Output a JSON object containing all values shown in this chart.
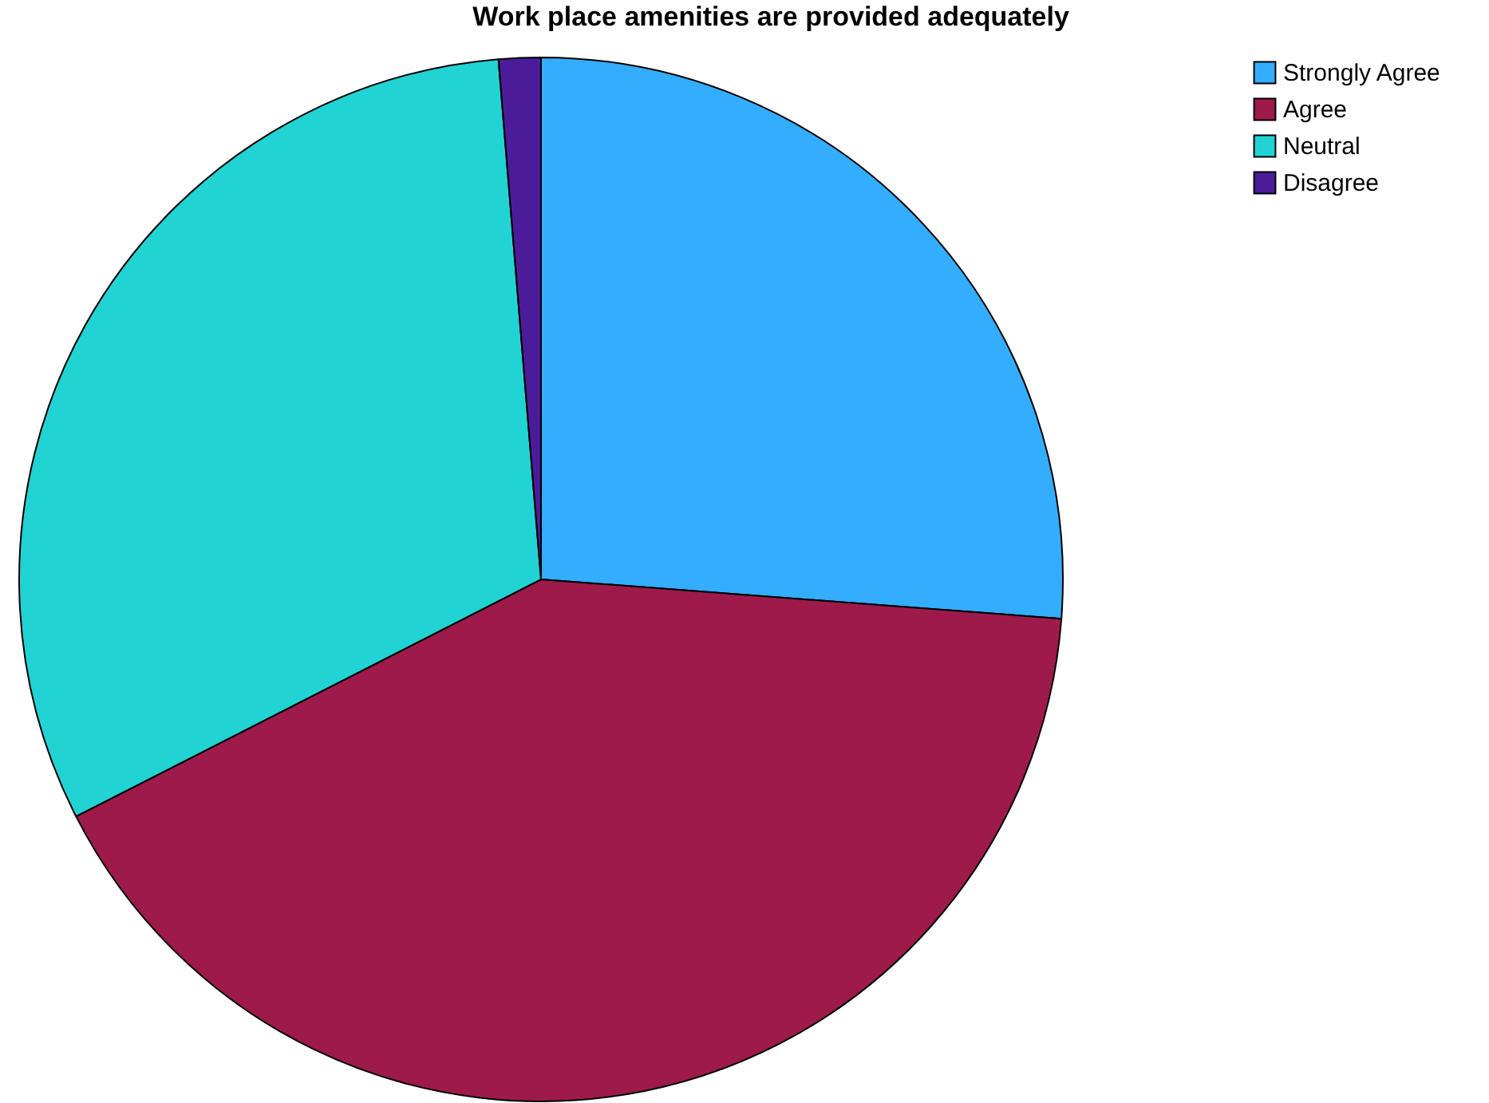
{
  "chart_data": {
    "type": "pie",
    "title": "Work place amenities are provided adequately",
    "categories": [
      "Strongly Agree",
      "Agree",
      "Neutral",
      "Disagree"
    ],
    "values": [
      26.2,
      41.3,
      31.2,
      1.3
    ],
    "colors": [
      "#33adff",
      "#9e1a4b",
      "#22d3d3",
      "#4b1c9a"
    ],
    "legend": "top right"
  }
}
